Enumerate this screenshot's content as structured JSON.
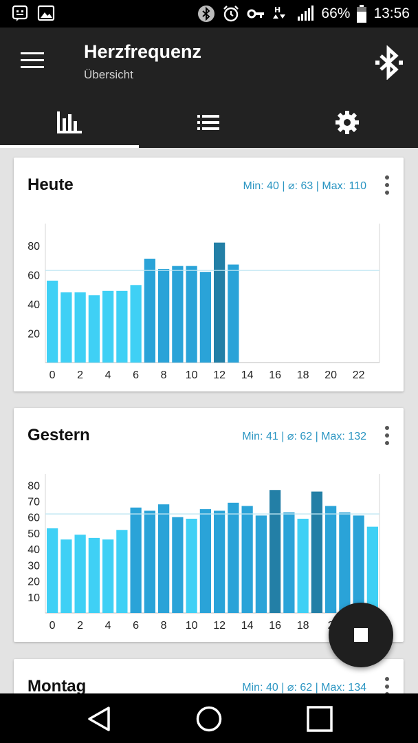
{
  "status_bar": {
    "battery": "66%",
    "time": "13:56",
    "icons": [
      "notification-icon",
      "image-icon",
      "bluetooth-icon",
      "alarm-icon",
      "key-icon",
      "data-icon",
      "signal-icon",
      "battery-icon"
    ]
  },
  "app_bar": {
    "title": "Herzfrequenz",
    "subtitle": "Übersicht",
    "menu_icon": "hamburger-icon",
    "action_icon": "bluetooth-icon"
  },
  "tabs": [
    {
      "icon": "bar-chart-icon",
      "selected": true
    },
    {
      "icon": "list-icon",
      "selected": false
    },
    {
      "icon": "gear-icon",
      "selected": false
    }
  ],
  "colors": {
    "accent": "#2a95c2",
    "bar_light": "#3fd0f5",
    "bar_mid": "#2aa3d8",
    "bar_dark": "#237fa6",
    "avg_line": "#bfe6f2"
  },
  "cards": [
    {
      "title": "Heute",
      "stats": "Min: 40  |  ⌀: 63  |  Max: 110",
      "chart_data": {
        "type": "bar",
        "x": [
          0,
          1,
          2,
          3,
          4,
          5,
          6,
          7,
          8,
          9,
          10,
          11,
          12,
          13
        ],
        "values": [
          56,
          48,
          48,
          46,
          49,
          49,
          53,
          71,
          64,
          66,
          66,
          62,
          82,
          67
        ],
        "xticks": [
          "0",
          "2",
          "4",
          "6",
          "8",
          "10",
          "12",
          "14",
          "16",
          "18",
          "20",
          "22"
        ],
        "yticks": [
          "20",
          "40",
          "60",
          "80"
        ],
        "xlim": [
          0,
          24
        ],
        "ylim": [
          0,
          95
        ],
        "average": 63
      }
    },
    {
      "title": "Gestern",
      "stats": "Min: 41  |  ⌀: 62  |  Max: 132",
      "chart_data": {
        "type": "bar",
        "x": [
          0,
          1,
          2,
          3,
          4,
          5,
          6,
          7,
          8,
          9,
          10,
          11,
          12,
          13,
          14,
          15,
          16,
          17,
          18,
          19,
          20,
          21,
          22,
          23
        ],
        "values": [
          53,
          46,
          49,
          47,
          46,
          52,
          66,
          64,
          68,
          60,
          59,
          65,
          64,
          69,
          67,
          61,
          77,
          63,
          59,
          76,
          67,
          63,
          61,
          54
        ],
        "xticks": [
          "0",
          "2",
          "4",
          "6",
          "8",
          "10",
          "12",
          "14",
          "16",
          "18",
          "2"
        ],
        "yticks": [
          "10",
          "20",
          "30",
          "40",
          "50",
          "60",
          "70",
          "80"
        ],
        "xlim": [
          0,
          24
        ],
        "ylim": [
          0,
          87
        ],
        "average": 62
      }
    },
    {
      "title": "Montag",
      "stats": "Min: 40  |  ⌀: 62  |  Max: 134"
    }
  ],
  "fab": {
    "icon": "stop-icon"
  },
  "nav_bar": {
    "icons": [
      "back-icon",
      "home-icon",
      "recents-icon"
    ]
  }
}
